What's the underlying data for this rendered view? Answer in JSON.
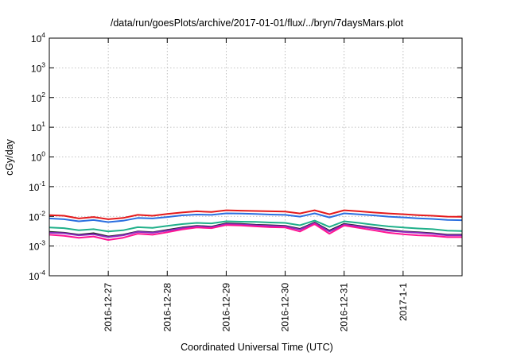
{
  "chart_data": {
    "type": "line",
    "title": "/data/run/goesPlots/archive/2017-01-01/flux/../bryn/7daysMars.plot",
    "xlabel": "Coordinated Universal Time (UTC)",
    "ylabel": "cGy/day",
    "yscale": "log",
    "ylim": [
      0.0001,
      10000
    ],
    "xlim": [
      "2016-12-26T00:00",
      "2017-01-02T00:00"
    ],
    "grid": true,
    "y_ticks": [
      {
        "value": 0.0001,
        "mantissa": "10",
        "exp": "-4"
      },
      {
        "value": 0.001,
        "mantissa": "10",
        "exp": "-3"
      },
      {
        "value": 0.01,
        "mantissa": "10",
        "exp": "-2"
      },
      {
        "value": 0.1,
        "mantissa": "10",
        "exp": "-1"
      },
      {
        "value": 1,
        "mantissa": "10",
        "exp": "0"
      },
      {
        "value": 10,
        "mantissa": "10",
        "exp": "1"
      },
      {
        "value": 100,
        "mantissa": "10",
        "exp": "2"
      },
      {
        "value": 1000,
        "mantissa": "10",
        "exp": "3"
      },
      {
        "value": 10000,
        "mantissa": "10",
        "exp": "4"
      }
    ],
    "x_ticks": [
      {
        "day": 1,
        "label": "2016-12-27"
      },
      {
        "day": 2,
        "label": "2016-12-28"
      },
      {
        "day": 3,
        "label": "2016-12-29"
      },
      {
        "day": 4,
        "label": "2016-12-30"
      },
      {
        "day": 5,
        "label": "2016-12-31"
      },
      {
        "day": 6,
        "label": "2017-1-1"
      }
    ],
    "x_days": [
      0.0,
      0.25,
      0.5,
      0.75,
      1.0,
      1.25,
      1.5,
      1.75,
      2.0,
      2.25,
      2.5,
      2.75,
      3.0,
      3.25,
      3.5,
      3.75,
      4.0,
      4.25,
      4.5,
      4.75,
      5.0,
      5.25,
      5.5,
      5.75,
      6.0,
      6.25,
      6.5,
      6.75,
      7.0
    ],
    "series": [
      {
        "name": "red",
        "color": "#e41a1c",
        "values": [
          0.011,
          0.0105,
          0.0085,
          0.0095,
          0.008,
          0.0088,
          0.0112,
          0.0105,
          0.012,
          0.0135,
          0.0148,
          0.014,
          0.016,
          0.0155,
          0.0152,
          0.0148,
          0.0145,
          0.0125,
          0.016,
          0.0118,
          0.016,
          0.0148,
          0.0135,
          0.0125,
          0.0118,
          0.011,
          0.0105,
          0.0098,
          0.0096
        ]
      },
      {
        "name": "blue",
        "color": "#2b6fe0",
        "values": [
          0.0085,
          0.008,
          0.0068,
          0.0075,
          0.0064,
          0.0071,
          0.0088,
          0.0085,
          0.0095,
          0.0108,
          0.0115,
          0.0112,
          0.0126,
          0.0124,
          0.012,
          0.0115,
          0.0112,
          0.0098,
          0.0126,
          0.0092,
          0.0126,
          0.0116,
          0.0108,
          0.0098,
          0.0092,
          0.0086,
          0.0082,
          0.0076,
          0.0074
        ]
      },
      {
        "name": "teal",
        "color": "#20b08a",
        "values": [
          0.0042,
          0.004,
          0.0034,
          0.0037,
          0.0031,
          0.0034,
          0.0043,
          0.0041,
          0.0048,
          0.0055,
          0.006,
          0.0058,
          0.0068,
          0.0066,
          0.0065,
          0.0062,
          0.006,
          0.005,
          0.0072,
          0.0044,
          0.0068,
          0.006,
          0.0052,
          0.0046,
          0.0042,
          0.0039,
          0.0037,
          0.0033,
          0.0032
        ]
      },
      {
        "name": "dark",
        "color": "#222222",
        "values": [
          0.003,
          0.0028,
          0.0024,
          0.0027,
          0.0021,
          0.0024,
          0.0031,
          0.0029,
          0.0035,
          0.0042,
          0.0048,
          0.0045,
          0.0058,
          0.0056,
          0.0052,
          0.005,
          0.0048,
          0.0038,
          0.0062,
          0.0033,
          0.0056,
          0.0048,
          0.0041,
          0.0035,
          0.0031,
          0.0029,
          0.0027,
          0.0024,
          0.0024
        ]
      },
      {
        "name": "purple",
        "color": "#8a2bbf",
        "values": [
          0.0028,
          0.0027,
          0.0023,
          0.0025,
          0.002,
          0.0023,
          0.003,
          0.0028,
          0.0033,
          0.004,
          0.0046,
          0.0043,
          0.0055,
          0.0053,
          0.005,
          0.0048,
          0.0046,
          0.0036,
          0.0059,
          0.0031,
          0.0053,
          0.0046,
          0.0039,
          0.0033,
          0.003,
          0.0028,
          0.0026,
          0.0023,
          0.0023
        ]
      },
      {
        "name": "magenta",
        "color": "#ff1493",
        "values": [
          0.0024,
          0.0022,
          0.0019,
          0.0021,
          0.0016,
          0.0019,
          0.0026,
          0.0024,
          0.0029,
          0.0036,
          0.0042,
          0.004,
          0.0051,
          0.0049,
          0.0046,
          0.0043,
          0.0042,
          0.0031,
          0.0055,
          0.0026,
          0.0049,
          0.0041,
          0.0034,
          0.0028,
          0.0025,
          0.0023,
          0.0022,
          0.002,
          0.002
        ]
      }
    ]
  }
}
